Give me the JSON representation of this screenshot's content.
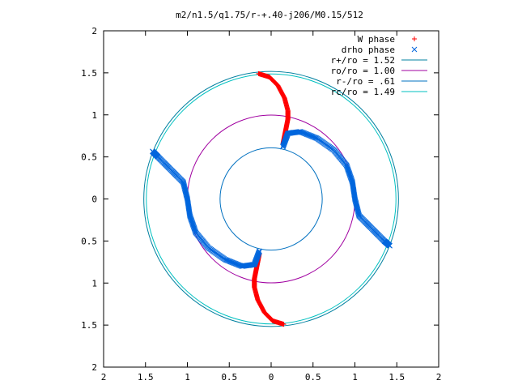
{
  "chart_data": {
    "type": "scatter",
    "title": "m2/n1.5/q1.75/r-+.40-j206/M0.15/512",
    "xlim": [
      -2,
      2
    ],
    "ylim": [
      -2,
      2
    ],
    "x_tick_labels": [
      "2",
      "1.5",
      "1",
      "0.5",
      "0",
      "0.5",
      "1",
      "1.5",
      "2"
    ],
    "y_tick_labels": [
      "2",
      "1.5",
      "1",
      "0.5",
      "0",
      "0.5",
      "1",
      "1.5",
      "2"
    ],
    "x_ticks": [
      -2,
      -1.5,
      -1,
      -0.5,
      0,
      0.5,
      1,
      1.5,
      2
    ],
    "y_ticks": [
      2,
      1.5,
      1,
      0.5,
      0,
      -0.5,
      -1,
      -1.5,
      -2
    ],
    "grid": false,
    "legend_position": "top-right",
    "series": [
      {
        "name": "W phase",
        "marker": "+",
        "color": "#ff0000",
        "segments": [
          [
            [
              -0.15,
              1.49
            ],
            [
              -0.02,
              1.45
            ],
            [
              0.08,
              1.35
            ],
            [
              0.16,
              1.2
            ],
            [
              0.2,
              1.05
            ],
            [
              0.2,
              0.95
            ],
            [
              0.18,
              0.85
            ],
            [
              0.16,
              0.75
            ],
            [
              0.14,
              0.65
            ]
          ],
          [
            [
              0.15,
              -1.49
            ],
            [
              0.02,
              -1.45
            ],
            [
              -0.08,
              -1.35
            ],
            [
              -0.16,
              -1.2
            ],
            [
              -0.2,
              -1.05
            ],
            [
              -0.2,
              -0.95
            ],
            [
              -0.18,
              -0.85
            ],
            [
              -0.16,
              -0.75
            ],
            [
              -0.14,
              -0.65
            ]
          ]
        ]
      },
      {
        "name": "drho phase",
        "marker": "x",
        "color": "#0066dd",
        "segments": [
          [
            [
              0.14,
              0.62
            ],
            [
              0.2,
              0.78
            ],
            [
              0.35,
              0.8
            ],
            [
              0.55,
              0.72
            ],
            [
              0.75,
              0.58
            ],
            [
              0.9,
              0.4
            ],
            [
              0.97,
              0.2
            ],
            [
              1.0,
              0.0
            ],
            [
              1.05,
              -0.2
            ],
            [
              1.2,
              -0.35
            ],
            [
              1.35,
              -0.5
            ],
            [
              1.42,
              -0.56
            ]
          ],
          [
            [
              -0.14,
              -0.62
            ],
            [
              -0.2,
              -0.78
            ],
            [
              -0.35,
              -0.8
            ],
            [
              -0.55,
              -0.72
            ],
            [
              -0.75,
              -0.58
            ],
            [
              -0.9,
              -0.4
            ],
            [
              -0.97,
              -0.2
            ],
            [
              -1.0,
              0.0
            ],
            [
              -1.05,
              0.2
            ],
            [
              -1.2,
              0.35
            ],
            [
              -1.35,
              0.5
            ],
            [
              -1.42,
              0.57
            ]
          ]
        ]
      },
      {
        "name": "r+/ro = 1.52",
        "type": "circle",
        "radius": 1.52,
        "color": "#0080a0"
      },
      {
        "name": "ro/ro = 1.00",
        "type": "circle",
        "radius": 1.0,
        "color": "#a000a0"
      },
      {
        "name": "r-/ro = .61",
        "type": "circle",
        "radius": 0.61,
        "color": "#0070c0"
      },
      {
        "name": "rc/ro = 1.49",
        "type": "circle",
        "radius": 1.49,
        "color": "#00c0c0"
      }
    ]
  }
}
